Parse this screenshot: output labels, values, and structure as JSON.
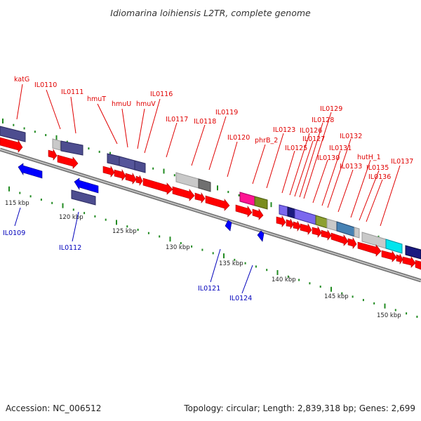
{
  "title": "Idiomarina loihiensis L2TR, complete genome",
  "footer": {
    "accession": "Accession: NC_006512",
    "summary": "Topology: circular; Length: 2,839,318 bp; Genes: 2,699"
  },
  "colors": {
    "forward_gene": "#ff0000",
    "reverse_gene": "#0000ff",
    "label_forward": "#e00000",
    "label_reverse": "#0000bb",
    "tick": "#228b22",
    "backbone": "#888888"
  },
  "kbp_labels": [
    "115 kbp",
    "120 kbp",
    "125 kbp",
    "130 kbp",
    "135 kbp",
    "140 kbp",
    "145 kbp",
    "150 kbp"
  ],
  "forward_labels": [
    "katG",
    "IL0110",
    "IL0111",
    "hmuT",
    "hmuU",
    "hmuV",
    "IL0116",
    "IL0117",
    "IL0118",
    "IL0119",
    "IL0120",
    "phrB_2",
    "IL0123",
    "IL0125",
    "IL0126",
    "IL0127",
    "IL0128",
    "IL0129",
    "IL0130",
    "IL0131",
    "IL0132",
    "IL0133",
    "hutH_1",
    "IL0135",
    "IL0136",
    "IL0137"
  ],
  "reverse_labels": [
    "IL0109",
    "IL0112",
    "IL0121",
    "IL0124"
  ]
}
